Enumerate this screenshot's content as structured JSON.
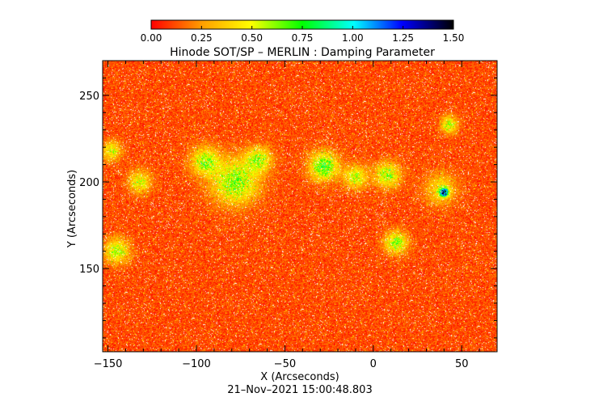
{
  "chart_data": {
    "type": "heatmap",
    "title": "Hinode SOT/SP – MERLIN : Damping Parameter",
    "xlabel": "X (Arcseconds)",
    "ylabel": "Y (Arcseconds)",
    "footer": "21–Nov–2021 15:00:48.803",
    "xlim": [
      -153,
      70
    ],
    "ylim": [
      102,
      270
    ],
    "x_ticks": [
      -150,
      -100,
      -50,
      0,
      50
    ],
    "x_tick_labels": [
      "−150",
      "−100",
      "−50",
      "0",
      "50"
    ],
    "y_ticks": [
      150,
      200,
      250
    ],
    "y_tick_labels": [
      "150",
      "200",
      "250"
    ],
    "colorbar": {
      "range": [
        0.0,
        1.5
      ],
      "ticks": [
        0.0,
        0.25,
        0.5,
        0.75,
        1.0,
        1.25,
        1.5
      ],
      "tick_labels": [
        "0.00",
        "0.25",
        "0.50",
        "0.75",
        "1.00",
        "1.25",
        "1.50"
      ],
      "colormap": "rainbow-reversed (red→yellow→green→cyan→blue→black)"
    },
    "background_value": 0.12,
    "features": [
      {
        "x": -78,
        "y": 200,
        "radius": 16,
        "value": 0.62
      },
      {
        "x": -95,
        "y": 212,
        "radius": 10,
        "value": 0.58
      },
      {
        "x": -65,
        "y": 213,
        "radius": 9,
        "value": 0.55
      },
      {
        "x": -28,
        "y": 209,
        "radius": 10,
        "value": 0.7
      },
      {
        "x": -10,
        "y": 203,
        "radius": 8,
        "value": 0.55
      },
      {
        "x": 8,
        "y": 204,
        "radius": 9,
        "value": 0.58
      },
      {
        "x": 13,
        "y": 165,
        "radius": 8,
        "value": 0.6
      },
      {
        "x": 38,
        "y": 196,
        "radius": 11,
        "value": 0.42
      },
      {
        "x": 40,
        "y": 194,
        "radius": 3,
        "value": 1.3
      },
      {
        "x": -145,
        "y": 160,
        "radius": 9,
        "value": 0.55
      },
      {
        "x": -132,
        "y": 200,
        "radius": 8,
        "value": 0.5
      },
      {
        "x": 43,
        "y": 233,
        "radius": 6,
        "value": 0.55
      },
      {
        "x": -148,
        "y": 218,
        "radius": 7,
        "value": 0.5
      }
    ]
  }
}
